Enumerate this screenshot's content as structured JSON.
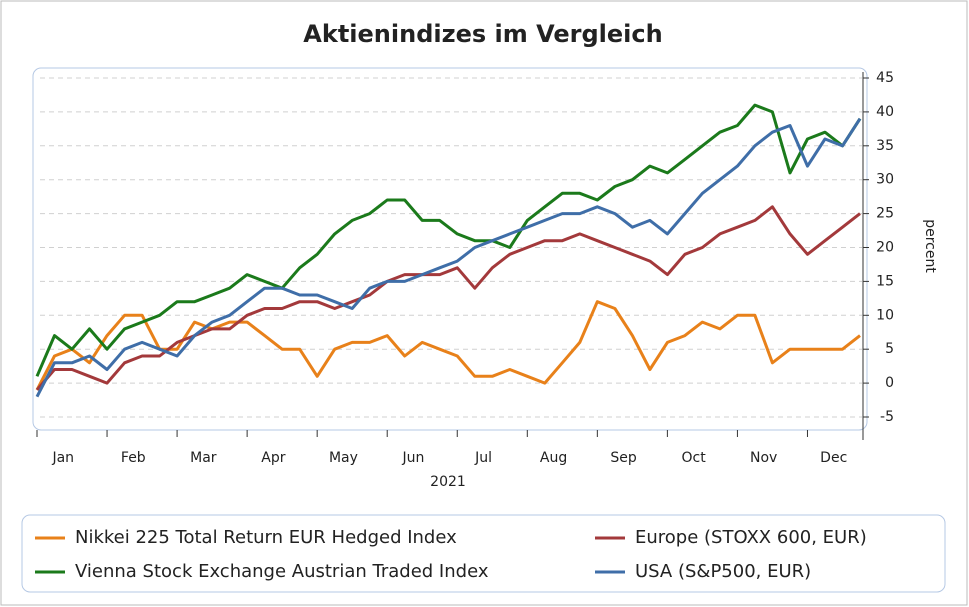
{
  "chart_data": {
    "type": "line",
    "title": "Aktienindizes im Vergleich",
    "x_label": "2021",
    "y_label": "percent",
    "categories": [
      null,
      "Jan",
      null,
      null,
      null,
      "Feb",
      null,
      null,
      null,
      "Mar",
      null,
      null,
      null,
      "Apr",
      null,
      null,
      null,
      "May",
      null,
      null,
      null,
      "Jun",
      null,
      null,
      null,
      "Jul",
      null,
      null,
      null,
      "Aug",
      null,
      null,
      null,
      "Sep",
      null,
      null,
      null,
      "Oct",
      null,
      null,
      null,
      "Nov",
      null,
      null,
      null,
      "Dec",
      null,
      null
    ],
    "series": [
      {
        "name": "Nikkei 225 Total Return EUR Hedged Index",
        "color": "#e8811a",
        "values": [
          -1,
          4,
          5,
          3,
          7,
          10,
          10,
          5,
          5,
          9,
          8,
          9,
          9,
          7,
          5,
          5,
          1,
          5,
          6,
          6,
          7,
          4,
          6,
          5,
          4,
          1,
          1,
          2,
          1,
          0,
          3,
          6,
          12,
          11,
          7,
          2,
          6,
          7,
          9,
          8,
          10,
          10,
          3,
          5,
          5,
          5,
          5,
          7
        ]
      },
      {
        "name": "Europe (STOXX 600, EUR)",
        "color": "#a3393b",
        "values": [
          -1,
          2,
          2,
          1,
          0,
          3,
          4,
          4,
          6,
          7,
          8,
          8,
          10,
          11,
          11,
          12,
          12,
          11,
          12,
          13,
          15,
          16,
          16,
          16,
          17,
          14,
          17,
          19,
          20,
          21,
          21,
          22,
          21,
          20,
          19,
          18,
          16,
          19,
          20,
          22,
          23,
          24,
          26,
          22,
          19,
          21,
          23,
          25
        ]
      },
      {
        "name": "Vienna Stock Exchange Austrian Traded Index",
        "color": "#1b7a1b",
        "values": [
          1,
          7,
          5,
          8,
          5,
          8,
          9,
          10,
          12,
          12,
          13,
          14,
          16,
          15,
          14,
          17,
          19,
          22,
          24,
          25,
          27,
          27,
          24,
          24,
          22,
          21,
          21,
          20,
          24,
          26,
          28,
          28,
          27,
          29,
          30,
          32,
          31,
          33,
          35,
          37,
          38,
          41,
          40,
          31,
          36,
          37,
          35,
          39
        ]
      },
      {
        "name": "USA (S&P500, EUR)",
        "color": "#3f6ea8",
        "values": [
          -2,
          3,
          3,
          4,
          2,
          5,
          6,
          5,
          4,
          7,
          9,
          10,
          12,
          14,
          14,
          13,
          13,
          12,
          11,
          14,
          15,
          15,
          16,
          17,
          18,
          20,
          21,
          22,
          23,
          24,
          25,
          25,
          26,
          25,
          23,
          24,
          22,
          25,
          28,
          30,
          32,
          35,
          37,
          38,
          32,
          36,
          35,
          39
        ]
      }
    ],
    "ylim": [
      -5,
      45
    ],
    "yticks": [
      -5,
      0,
      5,
      10,
      15,
      20,
      25,
      30,
      35,
      40,
      45
    ],
    "grid": true
  }
}
